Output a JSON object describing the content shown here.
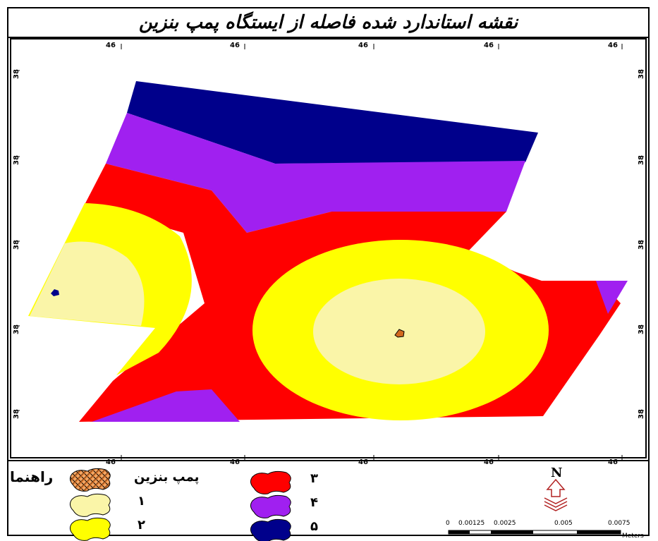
{
  "title": "نقشه استاندارد شده فاصله از ایستگاه پمپ بنزین",
  "graticule": {
    "top_labels": [
      "46",
      "46",
      "46",
      "46",
      "46"
    ],
    "bottom_labels": [
      "46",
      "46",
      "46",
      "46",
      "46"
    ],
    "side_labels": [
      "38",
      "38",
      "38",
      "38",
      "38"
    ]
  },
  "legend": {
    "title": "راهنما",
    "station_label": "پمپ بنزین",
    "classes": [
      {
        "label": "۱",
        "color": "#FAF5A8"
      },
      {
        "label": "۲",
        "color": "#FFFF00"
      },
      {
        "label": "۳",
        "color": "#FF0000"
      },
      {
        "label": "۴",
        "color": "#A020F0"
      },
      {
        "label": "۵",
        "color": "#00008B"
      }
    ]
  },
  "north_arrow": {
    "letter": "N"
  },
  "scale_bar": {
    "ticks": [
      "0",
      "0.00125",
      "0.0025",
      "0.005",
      "0.0075"
    ],
    "unit": "Meters"
  },
  "colors": {
    "class1": "#FAF5A8",
    "class2": "#FFFF00",
    "class3": "#FF0000",
    "class4": "#A020F0",
    "class5": "#00008B",
    "station": "#D2691E"
  }
}
